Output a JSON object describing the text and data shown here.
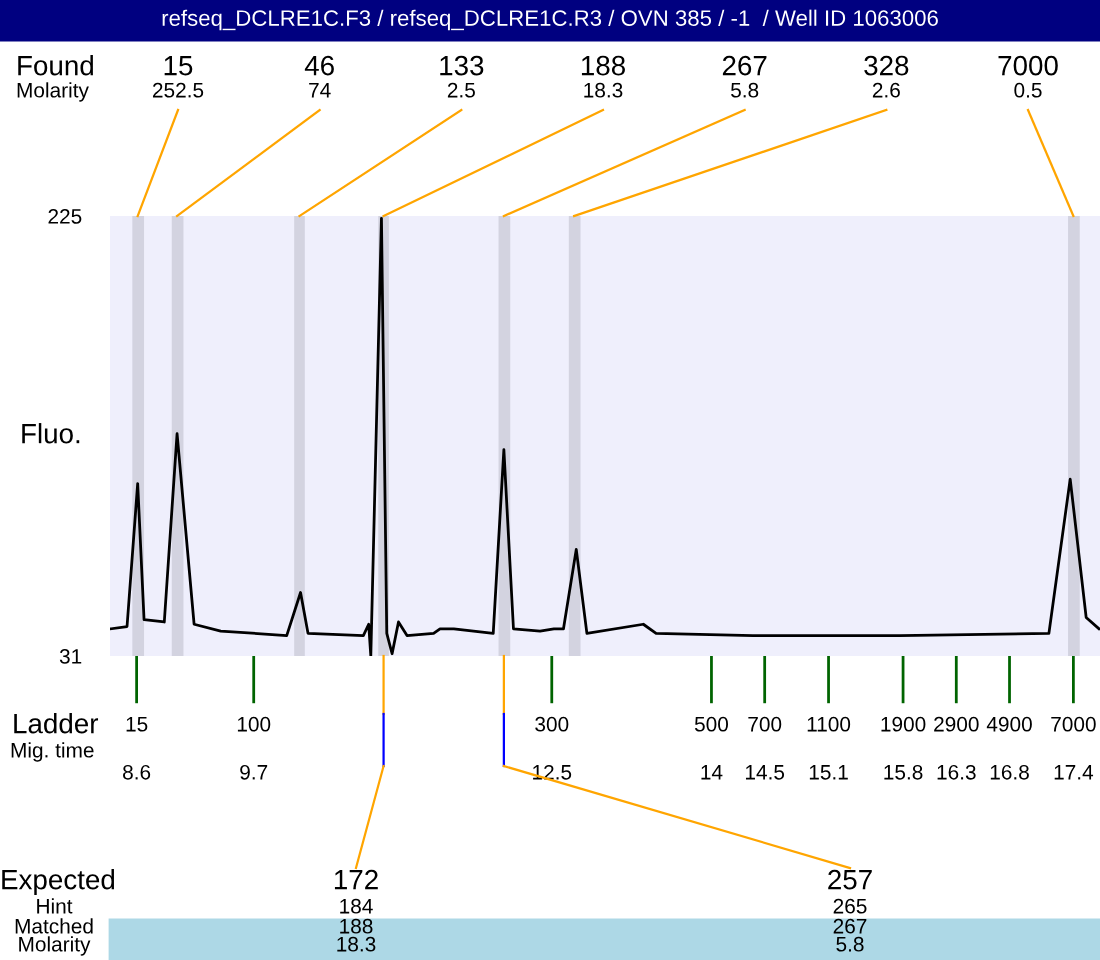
{
  "chart_data": {
    "type": "line",
    "title": "refseq_DCLRE1C.F3 / refseq_DCLRE1C.R3 / OVN 385 / -1  / Well ID 1063006",
    "ylabel": "Fluo.",
    "xlabel": "Mig. time",
    "series": [
      {
        "color": "#000000",
        "x": [
          8.36,
          8.51,
          8.61,
          8.67,
          8.86,
          8.98,
          9.14,
          9.39,
          10.01,
          10.14,
          10.21,
          10.73,
          10.78,
          10.8,
          10.9,
          10.95,
          11.0,
          11.06,
          11.14,
          11.39,
          11.45,
          11.58,
          11.95,
          12.05,
          12.14,
          12.39,
          12.52,
          12.61,
          12.73,
          12.83,
          13.36,
          13.48,
          14.39,
          15.77,
          17.17,
          17.37,
          17.52,
          17.64
        ],
        "values": [
          43,
          44,
          107,
          47,
          46,
          129,
          45,
          42,
          40,
          59,
          41,
          40,
          45,
          31,
          224,
          41,
          32,
          46,
          40,
          41,
          43,
          43,
          41,
          122,
          43,
          42,
          43,
          43,
          78,
          41,
          45,
          41,
          40,
          40,
          41,
          109,
          48,
          43
        ]
      }
    ],
    "xlim": [
      8.35,
      17.65
    ],
    "xticks": [
      8.6,
      9.7,
      12.5,
      14,
      14.5,
      15.1,
      15.8,
      16.3,
      16.8,
      17.4
    ],
    "ylim": [
      31,
      225
    ],
    "yticks": [
      31,
      225
    ],
    "bands": [
      {
        "axis": "x",
        "from": 8.56,
        "to": 8.67,
        "color": "#d3d3e0"
      },
      {
        "axis": "x",
        "from": 8.93,
        "to": 9.04,
        "color": "#d3d3e0"
      },
      {
        "axis": "x",
        "from": 10.08,
        "to": 10.18,
        "color": "#d3d3e0"
      },
      {
        "axis": "x",
        "from": 10.87,
        "to": 10.97,
        "color": "#d3d3e0"
      },
      {
        "axis": "x",
        "from": 12.0,
        "to": 12.11,
        "color": "#d3d3e0"
      },
      {
        "axis": "x",
        "from": 12.66,
        "to": 12.77,
        "color": "#d3d3e0"
      },
      {
        "axis": "x",
        "from": 17.35,
        "to": 17.46,
        "color": "#d3d3e0"
      }
    ],
    "annotations": [
      "Found",
      "Molarity",
      {
        "text": "15",
        "x": 8.61,
        "y": 225
      },
      "252.5",
      {
        "text": "46",
        "x": 8.98,
        "y": 225
      },
      "74",
      {
        "text": "133",
        "x": 10.13,
        "y": 225
      },
      "2.5",
      {
        "text": "188",
        "x": 10.92,
        "y": 225
      },
      "18.3",
      {
        "text": "267",
        "x": 12.05,
        "y": 225
      },
      "5.8",
      {
        "text": "328",
        "x": 12.71,
        "y": 225
      },
      "2.6",
      {
        "text": "7000",
        "x": 17.4,
        "y": 225
      },
      "0.5",
      "Ladder",
      "15",
      "100",
      "300",
      "500",
      "700",
      "1100",
      "1900",
      "2900",
      "4900",
      "7000",
      "Expected",
      "Hint",
      "Matched",
      "Molarity",
      "172",
      "184",
      "188",
      "18.3",
      "257",
      "265",
      "267",
      "5.8"
    ],
    "grid": false,
    "legend": false
  }
}
